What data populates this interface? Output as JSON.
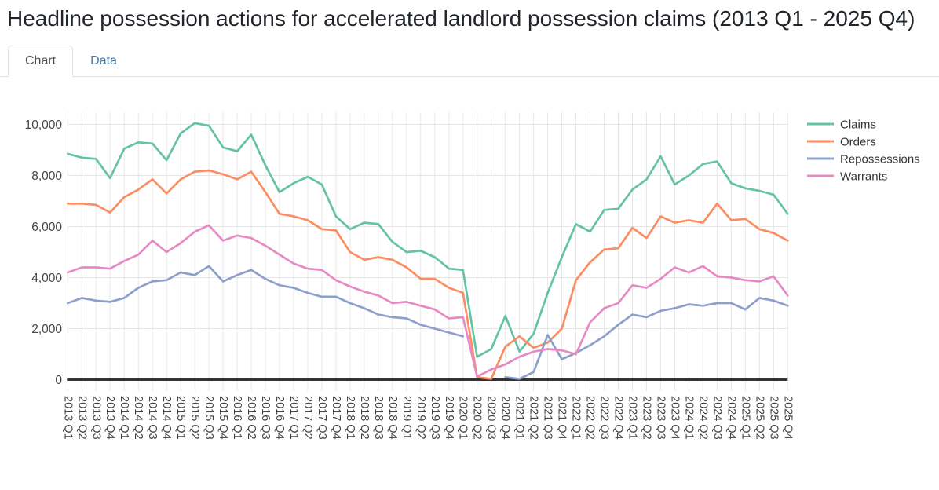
{
  "title": "Headline possession actions for accelerated landlord possession claims (2013 Q1 - 2025 Q4)",
  "tabs": [
    {
      "label": "Chart",
      "active": true
    },
    {
      "label": "Data",
      "active": false
    }
  ],
  "chart_data": {
    "type": "line",
    "title": "",
    "xlabel": "",
    "ylabel": "",
    "ylim": [
      0,
      10000
    ],
    "yticks": [
      0,
      2000,
      4000,
      6000,
      8000,
      10000
    ],
    "grid": true,
    "legend_position": "right",
    "categories": [
      "2013 Q1",
      "2013 Q2",
      "2013 Q3",
      "2013 Q4",
      "2014 Q1",
      "2014 Q2",
      "2014 Q3",
      "2014 Q4",
      "2015 Q1",
      "2015 Q2",
      "2015 Q3",
      "2015 Q4",
      "2016 Q1",
      "2016 Q2",
      "2016 Q3",
      "2016 Q4",
      "2017 Q1",
      "2017 Q2",
      "2017 Q3",
      "2017 Q4",
      "2018 Q1",
      "2018 Q2",
      "2018 Q3",
      "2018 Q4",
      "2019 Q1",
      "2019 Q2",
      "2019 Q3",
      "2019 Q4",
      "2020 Q1",
      "2020 Q2",
      "2020 Q3",
      "2020 Q4",
      "2021 Q1",
      "2021 Q2",
      "2021 Q3",
      "2021 Q4",
      "2022 Q1",
      "2022 Q2",
      "2022 Q3",
      "2022 Q4",
      "2023 Q1",
      "2023 Q2",
      "2023 Q3",
      "2023 Q4",
      "2024 Q1",
      "2024 Q2",
      "2024 Q3",
      "2024 Q4",
      "2025 Q1",
      "2025 Q2",
      "2025 Q3",
      "2025 Q4"
    ],
    "series": [
      {
        "name": "Claims",
        "color": "#66c2a5",
        "values": [
          8850,
          8700,
          8650,
          7900,
          9050,
          9300,
          9250,
          8600,
          9650,
          10050,
          9950,
          9100,
          8950,
          9600,
          8400,
          7350,
          7700,
          7950,
          7650,
          6400,
          5900,
          6150,
          6100,
          5400,
          5000,
          5050,
          4800,
          4350,
          4300,
          900,
          1200,
          2500,
          1100,
          1800,
          3400,
          4800,
          6100,
          5800,
          6650,
          6700,
          7450,
          7850,
          8750,
          7650,
          8000,
          8450,
          8550,
          7700,
          7500,
          7400,
          7250,
          6500
        ]
      },
      {
        "name": "Orders",
        "color": "#fc8d62",
        "values": [
          6900,
          6900,
          6850,
          6550,
          7150,
          7450,
          7850,
          7300,
          7850,
          8150,
          8200,
          8050,
          7850,
          8150,
          7350,
          6500,
          6400,
          6250,
          5900,
          5850,
          5000,
          4700,
          4800,
          4700,
          4400,
          3950,
          3950,
          3600,
          3400,
          100,
          30,
          1300,
          1700,
          1250,
          1450,
          2000,
          3900,
          4600,
          5100,
          5150,
          5950,
          5550,
          6400,
          6150,
          6250,
          6150,
          6900,
          6250,
          6300,
          5900,
          5750,
          5450
        ]
      },
      {
        "name": "Repossessions",
        "color": "#8da0cb",
        "values": [
          3000,
          3200,
          3100,
          3050,
          3200,
          3600,
          3850,
          3900,
          4200,
          4100,
          4450,
          3850,
          4100,
          4300,
          3950,
          3700,
          3600,
          3400,
          3250,
          3250,
          3000,
          2800,
          2550,
          2450,
          2400,
          2150,
          2000,
          1850,
          1700,
          null,
          null,
          100,
          30,
          300,
          1750,
          800,
          1050,
          1350,
          1700,
          2150,
          2550,
          2450,
          2700,
          2800,
          2950,
          2900,
          3000,
          3000,
          2750,
          3200,
          3100,
          2900
        ]
      },
      {
        "name": "Warrants",
        "color": "#e78ac3",
        "values": [
          4200,
          4400,
          4400,
          4350,
          4650,
          4900,
          5450,
          5000,
          5350,
          5800,
          6050,
          5450,
          5650,
          5550,
          5250,
          4900,
          4550,
          4350,
          4300,
          3900,
          3650,
          3450,
          3300,
          3000,
          3050,
          2900,
          2750,
          2400,
          2450,
          120,
          400,
          600,
          900,
          1100,
          1200,
          1150,
          1000,
          2250,
          2800,
          3000,
          3700,
          3600,
          3950,
          4400,
          4200,
          4450,
          4050,
          4000,
          3900,
          3850,
          4050,
          3300
        ]
      }
    ]
  },
  "colors": {
    "axis_line": "#333333",
    "gridline": "#e6e6e6",
    "tick_label": "#444444",
    "legend_text": "#333333"
  }
}
